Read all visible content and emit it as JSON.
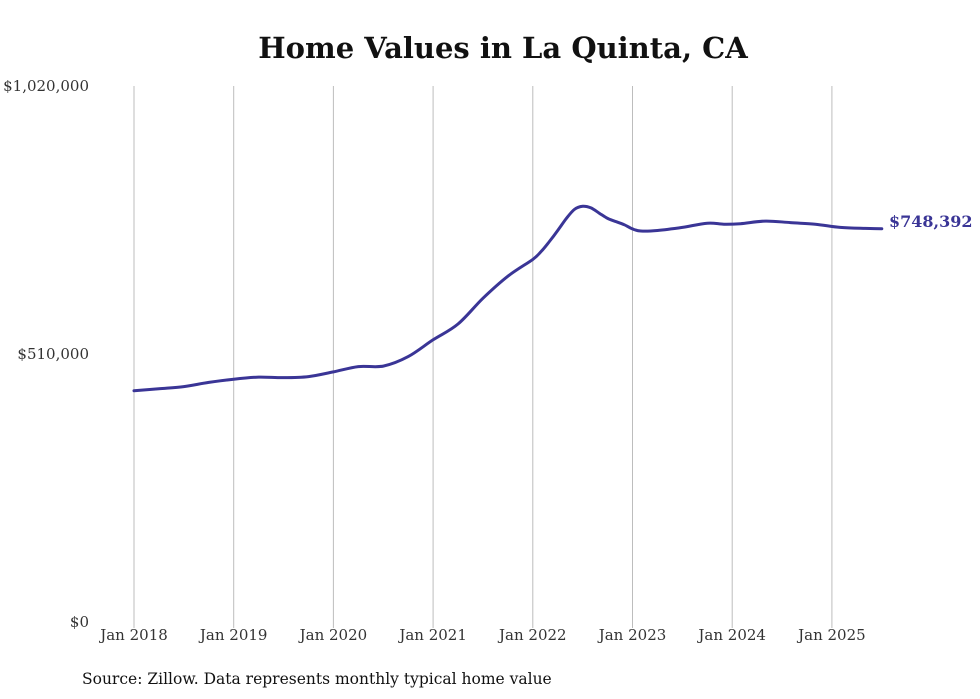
{
  "chart_data": {
    "type": "line",
    "title": "Home Values in La Quinta, CA",
    "source": "Source: Zillow. Data represents monthly typical home value",
    "ylim": [
      0,
      1020000
    ],
    "y_ticks": [
      {
        "value": 0,
        "label": "$0"
      },
      {
        "value": 510000,
        "label": "$510,000"
      },
      {
        "value": 1020000,
        "label": "$1,020,000"
      }
    ],
    "x_ticks": [
      {
        "value": 2018.0,
        "label": "Jan 2018"
      },
      {
        "value": 2019.0,
        "label": "Jan 2019"
      },
      {
        "value": 2020.0,
        "label": "Jan 2020"
      },
      {
        "value": 2021.0,
        "label": "Jan 2021"
      },
      {
        "value": 2022.0,
        "label": "Jan 2022"
      },
      {
        "value": 2023.0,
        "label": "Jan 2023"
      },
      {
        "value": 2024.0,
        "label": "Jan 2024"
      },
      {
        "value": 2025.0,
        "label": "Jan 2025"
      }
    ],
    "x": [
      "2018-01",
      "2018-04",
      "2018-07",
      "2018-10",
      "2019-01",
      "2019-04",
      "2019-07",
      "2019-10",
      "2020-01",
      "2020-04",
      "2020-07",
      "2020-10",
      "2021-01",
      "2021-04",
      "2021-07",
      "2021-10",
      "2022-01",
      "2022-02",
      "2022-03",
      "2022-04",
      "2022-05",
      "2022-06",
      "2022-07",
      "2022-08",
      "2022-09",
      "2022-10",
      "2022-11",
      "2022-12",
      "2023-01",
      "2023-02",
      "2023-04",
      "2023-07",
      "2023-10",
      "2023-12",
      "2024-02",
      "2024-05",
      "2024-08",
      "2024-11",
      "2025-02",
      "2025-05",
      "2025-07"
    ],
    "series": [
      {
        "values": [
          440000,
          444000,
          448000,
          456000,
          462000,
          466000,
          465000,
          467000,
          476000,
          486000,
          487000,
          505000,
          537000,
          567000,
          616000,
          658000,
          690000,
          705000,
          724000,
          745000,
          767000,
          785000,
          791000,
          788000,
          778000,
          768000,
          762000,
          756000,
          748000,
          744000,
          745000,
          751000,
          759000,
          757000,
          758000,
          763000,
          760000,
          757000,
          751000,
          749000,
          748392
        ],
        "color": "#3a3596"
      }
    ],
    "end_label": "$748,392",
    "grid": "vertical"
  }
}
